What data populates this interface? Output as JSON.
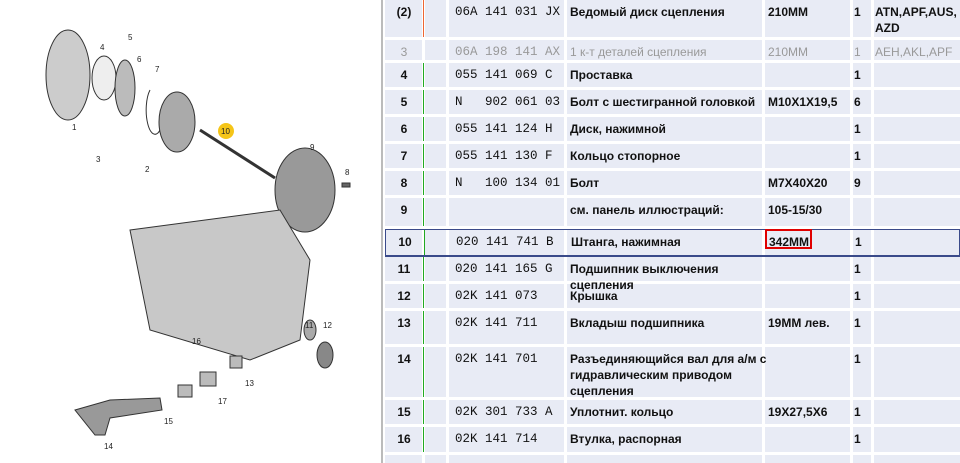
{
  "diagram": {
    "callouts": [
      "1",
      "2",
      "3",
      "4",
      "5",
      "6",
      "7",
      "8",
      "9",
      "10",
      "11",
      "12",
      "13",
      "14",
      "15",
      "16",
      "17"
    ],
    "highlight_color": "#f5c518"
  },
  "rows": [
    {
      "pos": "(2)",
      "part": "06A 141 031 JX",
      "name": "Ведомый диск сцепления",
      "note": "210MM",
      "qty": "1",
      "engines": "ATN,APF,AUS, AZD",
      "dim": false
    },
    {
      "pos": "3",
      "part": "06A 198 141 AX",
      "name": "1 к-т деталей сцепления",
      "note": "210MM",
      "qty": "1",
      "engines": "AEH,AKL,APF",
      "dim": true
    },
    {
      "pos": "4",
      "part": "055 141 069 C",
      "name": "Проставка",
      "note": "",
      "qty": "1",
      "engines": ""
    },
    {
      "pos": "5",
      "part": "N   902 061 03",
      "name": "Болт с шестигранной головкой",
      "note": "M10X1X19,5",
      "qty": "6",
      "engines": ""
    },
    {
      "pos": "6",
      "part": "055 141 124 H",
      "name": "Диск, нажимной",
      "note": "",
      "qty": "1",
      "engines": ""
    },
    {
      "pos": "7",
      "part": "055 141 130 F",
      "name": "Кольцо стопорное",
      "note": "",
      "qty": "1",
      "engines": ""
    },
    {
      "pos": "8",
      "part": "N   100 134 01",
      "name": "Болт",
      "note": "M7X40X20",
      "qty": "9",
      "engines": ""
    },
    {
      "pos": "9",
      "part": "",
      "name": "  см. панель иллюстраций:",
      "note": "105-15/30",
      "qty": "",
      "engines": ""
    },
    {
      "pos": "10",
      "part": "020 141 741 B",
      "name": "Штанга, нажимная",
      "note": "342MM",
      "qty": "1",
      "engines": "",
      "selected": true
    },
    {
      "pos": "11",
      "part": "020 141 165 G",
      "name": "Подшипник выключения сцепления",
      "note": "",
      "qty": "1",
      "engines": ""
    },
    {
      "pos": "12",
      "part": "02K 141 073",
      "name": "Крышка",
      "note": "",
      "qty": "1",
      "engines": ""
    },
    {
      "pos": "13",
      "part": "02K 141 711",
      "name": "Вкладыш подшипника",
      "note": "19MM лев.",
      "qty": "1",
      "engines": ""
    },
    {
      "pos": "14",
      "part": "02K 141 701",
      "name": "Разъединяющийся вал для а/м с гидравлическим приводом сцепления",
      "note": "",
      "qty": "1",
      "engines": ""
    },
    {
      "pos": "15",
      "part": "02K 301 733 A",
      "name": "Уплотнит. кольцо",
      "note": "19X27,5X6",
      "qty": "1",
      "engines": ""
    },
    {
      "pos": "16",
      "part": "02K 141 714",
      "name": "Втулка, распорная",
      "note": "",
      "qty": "1",
      "engines": ""
    }
  ]
}
